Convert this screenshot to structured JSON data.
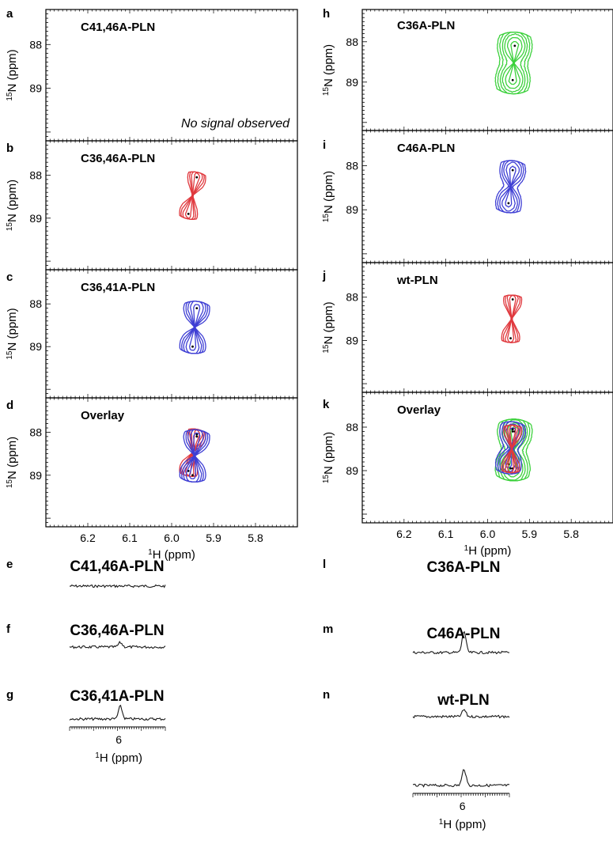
{
  "figure": {
    "panel_letters": [
      "a",
      "b",
      "c",
      "d",
      "e",
      "f",
      "g",
      "h",
      "i",
      "j",
      "k",
      "l",
      "m",
      "n"
    ],
    "ylabel": {
      "sup": "15",
      "main": "N (ppm)"
    },
    "xlabel": {
      "sup": "1",
      "main": "H (ppm)"
    },
    "colors": {
      "red": "#e0393e",
      "blue": "#3f3fd4",
      "green": "#3dd13d",
      "trace": "#1a1a1a"
    }
  },
  "chart_data": [
    {
      "panel": "a",
      "type": "contour",
      "title": "C41,46A-PLN",
      "annotation": "No signal observed",
      "xlabel": "",
      "ylabel": "15N (ppm)",
      "yticks": [
        88,
        89
      ],
      "xlim": [
        6.3,
        5.7
      ],
      "ylim": [
        87.2,
        90.2
      ],
      "peaks": []
    },
    {
      "panel": "b",
      "type": "contour",
      "title": "C36,46A-PLN",
      "xlabel": "",
      "ylabel": "15N (ppm)",
      "yticks": [
        88,
        89
      ],
      "xlim": [
        6.3,
        5.7
      ],
      "ylim": [
        87.2,
        90.2
      ],
      "color": "red",
      "peaks": [
        {
          "x": 5.94,
          "y": 88.05
        },
        {
          "x": 5.96,
          "y": 88.9
        }
      ]
    },
    {
      "panel": "c",
      "type": "contour",
      "title": "C36,41A-PLN",
      "xlabel": "",
      "ylabel": "15N (ppm)",
      "yticks": [
        88,
        89
      ],
      "xlim": [
        6.3,
        5.7
      ],
      "ylim": [
        87.2,
        90.2
      ],
      "color": "blue",
      "peaks": [
        {
          "x": 5.94,
          "y": 88.1
        },
        {
          "x": 5.95,
          "y": 89.0
        }
      ]
    },
    {
      "panel": "d",
      "type": "contour",
      "title": "Overlay",
      "xlabel": "1H (ppm)",
      "ylabel": "15N (ppm)",
      "yticks": [
        88,
        89
      ],
      "xticks": [
        6.2,
        6.1,
        6.0,
        5.9,
        5.8
      ],
      "xlim": [
        6.3,
        5.7
      ],
      "ylim": [
        87.2,
        90.2
      ],
      "series": [
        {
          "color": "red",
          "peaks": [
            {
              "x": 5.94,
              "y": 88.05
            },
            {
              "x": 5.96,
              "y": 88.9
            }
          ]
        },
        {
          "color": "blue",
          "peaks": [
            {
              "x": 5.94,
              "y": 88.1
            },
            {
              "x": 5.95,
              "y": 89.0
            }
          ]
        }
      ]
    },
    {
      "panel": "h",
      "type": "contour",
      "title": "C36A-PLN",
      "xlabel": "",
      "ylabel": "15N (ppm)",
      "yticks": [
        88,
        89
      ],
      "xlim": [
        6.3,
        5.7
      ],
      "ylim": [
        87.2,
        90.2
      ],
      "color": "green",
      "peaks": [
        {
          "x": 5.935,
          "y": 88.1
        },
        {
          "x": 5.94,
          "y": 88.95
        }
      ]
    },
    {
      "panel": "i",
      "type": "contour",
      "title": "C46A-PLN",
      "xlabel": "",
      "ylabel": "15N (ppm)",
      "yticks": [
        88,
        89
      ],
      "xlim": [
        6.3,
        5.7
      ],
      "ylim": [
        87.2,
        90.2
      ],
      "color": "blue",
      "peaks": [
        {
          "x": 5.94,
          "y": 88.1
        },
        {
          "x": 5.95,
          "y": 88.85
        }
      ]
    },
    {
      "panel": "j",
      "type": "contour",
      "title": "wt-PLN",
      "xlabel": "",
      "ylabel": "15N (ppm)",
      "yticks": [
        88,
        89
      ],
      "xlim": [
        6.3,
        5.7
      ],
      "ylim": [
        87.2,
        90.2
      ],
      "color": "red",
      "peaks": [
        {
          "x": 5.94,
          "y": 88.05
        },
        {
          "x": 5.945,
          "y": 88.95
        }
      ]
    },
    {
      "panel": "k",
      "type": "contour",
      "title": "Overlay",
      "xlabel": "1H (ppm)",
      "ylabel": "15N (ppm)",
      "yticks": [
        88,
        89
      ],
      "xticks": [
        6.2,
        6.1,
        6.0,
        5.9,
        5.8
      ],
      "xlim": [
        6.3,
        5.7
      ],
      "ylim": [
        87.2,
        90.2
      ],
      "series": [
        {
          "color": "green",
          "peaks": [
            {
              "x": 5.935,
              "y": 88.1
            },
            {
              "x": 5.94,
              "y": 88.95
            }
          ]
        },
        {
          "color": "blue",
          "peaks": [
            {
              "x": 5.94,
              "y": 88.1
            },
            {
              "x": 5.95,
              "y": 88.85
            }
          ]
        },
        {
          "color": "red",
          "peaks": [
            {
              "x": 5.94,
              "y": 88.05
            },
            {
              "x": 5.945,
              "y": 88.95
            }
          ]
        }
      ]
    },
    {
      "panel": "e",
      "type": "line",
      "title": "C41,46A-PLN",
      "peak_height": 0.0
    },
    {
      "panel": "f",
      "type": "line",
      "title": "C36,46A-PLN",
      "peak_height": 0.35
    },
    {
      "panel": "g",
      "type": "line",
      "title": "C36,41A-PLN",
      "peak_height": 1.0,
      "xticks": [
        6
      ],
      "xlabel": "1H (ppm)"
    },
    {
      "panel": "l",
      "type": "line",
      "title": "C36A-PLN",
      "peak_height": 1.7
    },
    {
      "panel": "m",
      "type": "line",
      "title": "C46A-PLN",
      "peak_height": 0.55
    },
    {
      "panel": "n",
      "type": "line",
      "title": "wt-PLN",
      "peak_height": 1.3,
      "xticks": [
        6
      ],
      "xlabel": "1H (ppm)"
    }
  ]
}
